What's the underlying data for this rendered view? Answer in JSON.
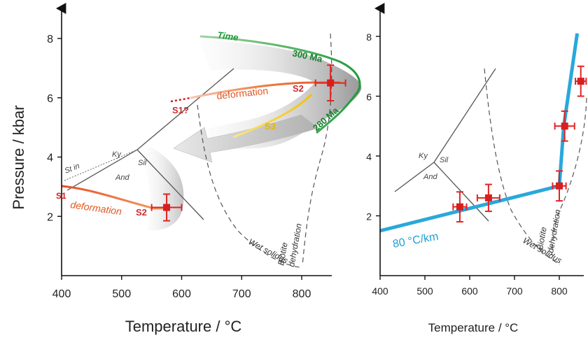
{
  "chart_data": [
    {
      "type": "line",
      "panel": "left",
      "xlabel": "Temperature / °C",
      "ylabel": "Pressure / kbar",
      "xlim": [
        400,
        850
      ],
      "ylim": [
        0,
        9
      ],
      "xticks": [
        "400",
        "500",
        "600",
        "700",
        "800"
      ],
      "yticks": [
        "2",
        "4",
        "6",
        "8"
      ],
      "annotations": {
        "time": "Time",
        "age_300": "300 Ma",
        "age_280": "280 Ma",
        "deformation_upper": "deformation",
        "deformation_lower": "deformation",
        "s1_upper": "S1?",
        "s2_upper": "S2",
        "s3": "S3",
        "s1_lower": "S1",
        "s2_lower": "S2",
        "ky": "Ky",
        "sil": "Sil",
        "and": "And",
        "st_in": "St in",
        "biotite": "Biotite",
        "dehydration": "dehydration",
        "wet_solidus": "Wet solidus"
      },
      "data_points": [
        {
          "t": 848,
          "p": 6.5,
          "t_err": 25,
          "p_err": 0.6
        },
        {
          "t": 575,
          "p": 2.3,
          "t_err": 25,
          "p_err": 0.45
        }
      ]
    },
    {
      "type": "line",
      "panel": "right",
      "xlabel": "Temperature / °C",
      "ylabel": "",
      "xlim": [
        400,
        850
      ],
      "ylim": [
        0,
        9
      ],
      "xticks": [
        "400",
        "500",
        "600",
        "700",
        "800"
      ],
      "yticks": [
        "2",
        "4",
        "6",
        "8"
      ],
      "annotations": {
        "gradient": "80 °C/km",
        "ky": "Ky",
        "sil": "Sil",
        "and": "And",
        "biotite": "Biotite",
        "dehydration": "dehydration",
        "wet_solidus": "Wet solidus"
      },
      "geotherm": [
        {
          "t": 400,
          "p": 1.5
        },
        {
          "t": 800,
          "p": 3.0
        },
        {
          "t": 810,
          "p": 5.0
        },
        {
          "t": 840,
          "p": 8.1
        }
      ],
      "data_points": [
        {
          "t": 578,
          "p": 2.3,
          "t_err": 15,
          "p_err": 0.5
        },
        {
          "t": 642,
          "p": 2.6,
          "t_err": 25,
          "p_err": 0.45
        },
        {
          "t": 800,
          "p": 3.0,
          "t_err": 15,
          "p_err": 0.5
        },
        {
          "t": 812,
          "p": 5.0,
          "t_err": 22,
          "p_err": 0.5
        },
        {
          "t": 848,
          "p": 6.5,
          "t_err": 12,
          "p_err": 0.5
        }
      ]
    }
  ]
}
